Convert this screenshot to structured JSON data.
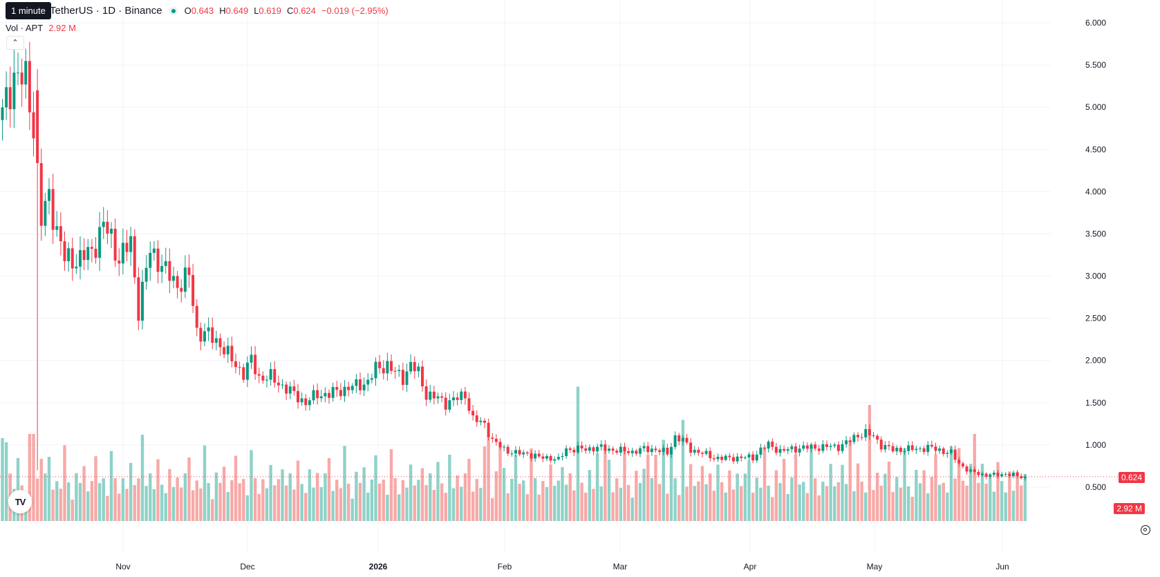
{
  "legend": {
    "symbol": "TetherUS · 1D · Binance",
    "o_key": "O",
    "o_val": "0.643",
    "h_key": "H",
    "h_val": "0.649",
    "l_key": "L",
    "l_val": "0.619",
    "c_key": "C",
    "c_val": "0.624",
    "change": "−0.019 (−2.95%)",
    "vol_label": "Vol · APT",
    "vol_value": "2.92 M"
  },
  "tooltip": "1 minute",
  "collapse_icon": "chevron-up",
  "logo_text": "TV",
  "last_price_badge": "0.624",
  "volume_badge": "2.92 M",
  "colors": {
    "up": "#089981",
    "down": "#f23645",
    "up_volume": "#8ed2c8",
    "down_volume": "#f7a9a7",
    "grid": "#f0f3fa"
  },
  "chart_data": {
    "type": "candlestick",
    "interval": "1D",
    "price_ticks": [
      "6.000",
      "5.500",
      "5.000",
      "4.500",
      "4.000",
      "3.500",
      "3.000",
      "2.500",
      "2.000",
      "1.500",
      "1.000",
      "0.500"
    ],
    "x_ticks": [
      "Nov",
      "Dec",
      "2026",
      "Feb",
      "Mar",
      "Apr",
      "May",
      "Jun"
    ],
    "ylim": [
      0.3,
      6.1
    ],
    "last_price": 0.624,
    "last_volume": "2.92 M",
    "anchors": [
      [
        0,
        4.9
      ],
      [
        3,
        5.4
      ],
      [
        6,
        5.3
      ],
      [
        8,
        4.8
      ],
      [
        10,
        3.65
      ],
      [
        12,
        3.95
      ],
      [
        14,
        3.55
      ],
      [
        16,
        3.2
      ],
      [
        20,
        3.2
      ],
      [
        23,
        3.3
      ],
      [
        26,
        3.6
      ],
      [
        28,
        3.45
      ],
      [
        30,
        3.2
      ],
      [
        33,
        3.4
      ],
      [
        35,
        2.6
      ],
      [
        38,
        3.3
      ],
      [
        40,
        3.2
      ],
      [
        42,
        3.05
      ],
      [
        45,
        2.9
      ],
      [
        48,
        3.0
      ],
      [
        50,
        2.35
      ],
      [
        53,
        2.3
      ],
      [
        56,
        2.2
      ],
      [
        59,
        2.0
      ],
      [
        62,
        1.85
      ],
      [
        64,
        2.0
      ],
      [
        66,
        1.8
      ],
      [
        69,
        1.8
      ],
      [
        72,
        1.7
      ],
      [
        75,
        1.6
      ],
      [
        78,
        1.5
      ],
      [
        81,
        1.6
      ],
      [
        84,
        1.6
      ],
      [
        87,
        1.65
      ],
      [
        91,
        1.7
      ],
      [
        94,
        1.75
      ],
      [
        96,
        1.9
      ],
      [
        99,
        1.95
      ],
      [
        101,
        1.85
      ],
      [
        103,
        1.8
      ],
      [
        105,
        1.95
      ],
      [
        107,
        1.85
      ],
      [
        109,
        1.6
      ],
      [
        112,
        1.55
      ],
      [
        114,
        1.5
      ],
      [
        117,
        1.55
      ],
      [
        119,
        1.6
      ],
      [
        121,
        1.3
      ],
      [
        124,
        1.25
      ],
      [
        126,
        1.05
      ],
      [
        129,
        0.95
      ],
      [
        132,
        0.9
      ],
      [
        135,
        0.9
      ],
      [
        138,
        0.85
      ],
      [
        141,
        0.85
      ],
      [
        143,
        0.82
      ],
      [
        145,
        0.95
      ],
      [
        147,
        0.95
      ],
      [
        150,
        0.95
      ],
      [
        153,
        0.97
      ],
      [
        156,
        0.95
      ],
      [
        159,
        0.93
      ],
      [
        162,
        0.92
      ],
      [
        165,
        0.95
      ],
      [
        168,
        0.95
      ],
      [
        171,
        0.9
      ],
      [
        173,
        1.1
      ],
      [
        175,
        1.05
      ],
      [
        177,
        0.95
      ],
      [
        180,
        0.9
      ],
      [
        183,
        0.85
      ],
      [
        186,
        0.84
      ],
      [
        189,
        0.85
      ],
      [
        191,
        0.85
      ],
      [
        193,
        0.85
      ],
      [
        195,
        0.95
      ],
      [
        197,
        1.0
      ],
      [
        200,
        0.93
      ],
      [
        203,
        0.95
      ],
      [
        206,
        0.97
      ],
      [
        209,
        0.97
      ],
      [
        212,
        0.98
      ],
      [
        215,
        0.98
      ],
      [
        218,
        1.05
      ],
      [
        220,
        1.12
      ],
      [
        222,
        1.14
      ],
      [
        224,
        1.1
      ],
      [
        226,
        1.0
      ],
      [
        229,
        0.94
      ],
      [
        232,
        0.95
      ],
      [
        235,
        0.95
      ],
      [
        238,
        0.97
      ],
      [
        241,
        0.94
      ],
      [
        244,
        0.9
      ],
      [
        246,
        0.78
      ],
      [
        249,
        0.68
      ],
      [
        252,
        0.65
      ],
      [
        255,
        0.64
      ],
      [
        258,
        0.66
      ],
      [
        261,
        0.63
      ],
      [
        263,
        0.62
      ]
    ],
    "volume_pattern": [
      0.7,
      0.4,
      0.5,
      0.35,
      0.8,
      0.45,
      0.3,
      0.55,
      0.4,
      0.6,
      0.38,
      0.5
    ],
    "volume_spikes": [
      [
        0,
        1.0
      ],
      [
        1,
        0.95
      ],
      [
        7,
        1.05
      ],
      [
        8,
        1.05
      ],
      [
        10,
        0.75
      ],
      [
        33,
        0.7
      ],
      [
        36,
        1.04
      ],
      [
        81,
        0.58
      ],
      [
        115,
        0.8
      ],
      [
        125,
        1.0
      ],
      [
        128,
        0.95
      ],
      [
        148,
        1.62
      ],
      [
        153,
        0.82
      ],
      [
        155,
        0.85
      ],
      [
        166,
        0.8
      ],
      [
        170,
        0.98
      ],
      [
        175,
        1.22
      ],
      [
        201,
        0.75
      ],
      [
        218,
        0.97
      ],
      [
        223,
        1.4
      ],
      [
        246,
        0.88
      ],
      [
        250,
        1.05
      ]
    ]
  }
}
